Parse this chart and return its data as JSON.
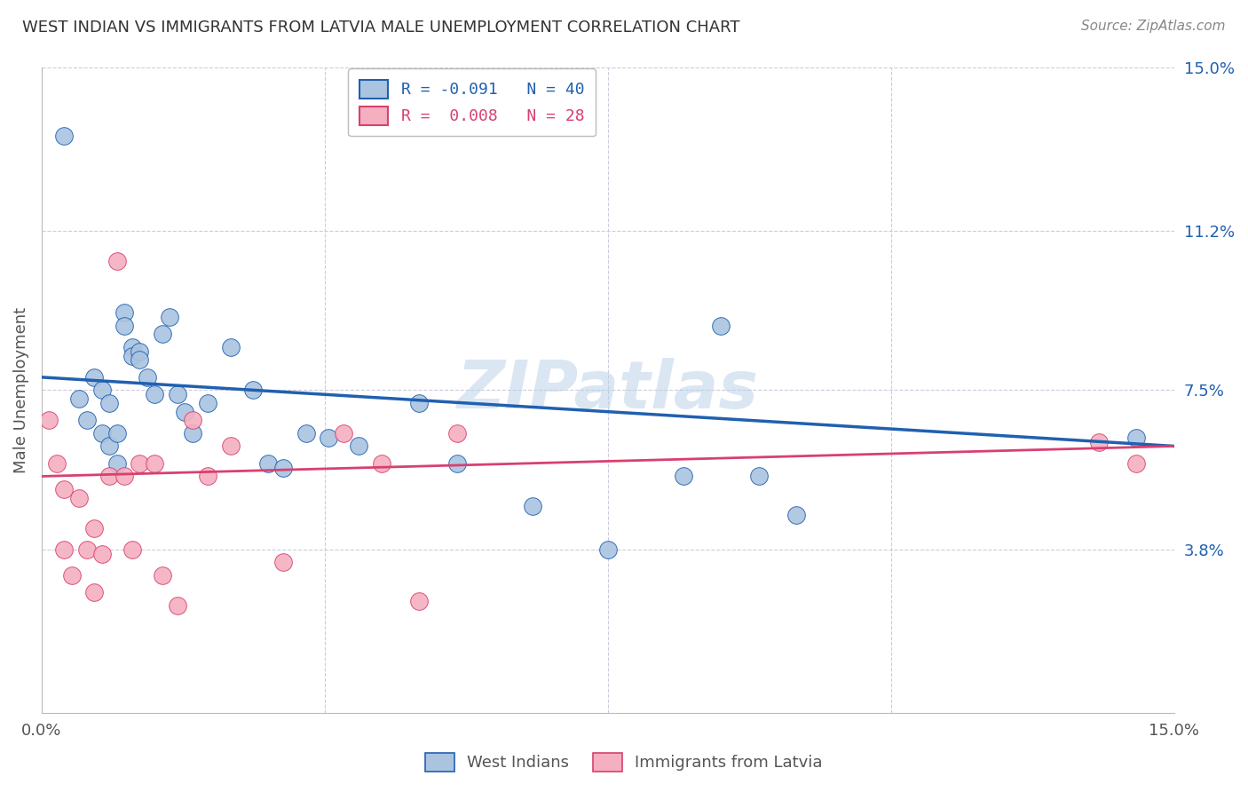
{
  "title": "WEST INDIAN VS IMMIGRANTS FROM LATVIA MALE UNEMPLOYMENT CORRELATION CHART",
  "source": "Source: ZipAtlas.com",
  "ylabel": "Male Unemployment",
  "legend_blue_label": "R = -0.091   N = 40",
  "legend_pink_label": "R =  0.008   N = 28",
  "bottom_legend_blue": "West Indians",
  "bottom_legend_pink": "Immigrants from Latvia",
  "watermark": "ZIPatlas",
  "blue_color": "#aac4e0",
  "blue_line_color": "#2060b0",
  "pink_color": "#f4b0c0",
  "pink_line_color": "#d84070",
  "xlim": [
    0.0,
    0.15
  ],
  "ylim": [
    0.0,
    0.15
  ],
  "yticks_right": [
    0.038,
    0.075,
    0.112,
    0.15
  ],
  "y_tick_labels_right": [
    "3.8%",
    "7.5%",
    "11.2%",
    "15.0%"
  ],
  "blue_x": [
    0.003,
    0.005,
    0.006,
    0.007,
    0.008,
    0.008,
    0.009,
    0.009,
    0.01,
    0.01,
    0.011,
    0.011,
    0.012,
    0.012,
    0.013,
    0.013,
    0.014,
    0.015,
    0.016,
    0.017,
    0.018,
    0.019,
    0.02,
    0.022,
    0.025,
    0.028,
    0.03,
    0.032,
    0.035,
    0.038,
    0.042,
    0.05,
    0.055,
    0.065,
    0.075,
    0.085,
    0.09,
    0.095,
    0.1,
    0.145
  ],
  "blue_y": [
    0.134,
    0.073,
    0.068,
    0.078,
    0.075,
    0.065,
    0.072,
    0.062,
    0.065,
    0.058,
    0.093,
    0.09,
    0.085,
    0.083,
    0.084,
    0.082,
    0.078,
    0.074,
    0.088,
    0.092,
    0.074,
    0.07,
    0.065,
    0.072,
    0.085,
    0.075,
    0.058,
    0.057,
    0.065,
    0.064,
    0.062,
    0.072,
    0.058,
    0.048,
    0.038,
    0.055,
    0.09,
    0.055,
    0.046,
    0.064
  ],
  "pink_x": [
    0.001,
    0.002,
    0.003,
    0.003,
    0.004,
    0.005,
    0.006,
    0.007,
    0.007,
    0.008,
    0.009,
    0.01,
    0.011,
    0.012,
    0.013,
    0.015,
    0.016,
    0.018,
    0.02,
    0.022,
    0.025,
    0.032,
    0.04,
    0.045,
    0.05,
    0.055,
    0.14,
    0.145
  ],
  "pink_y": [
    0.068,
    0.058,
    0.052,
    0.038,
    0.032,
    0.05,
    0.038,
    0.028,
    0.043,
    0.037,
    0.055,
    0.105,
    0.055,
    0.038,
    0.058,
    0.058,
    0.032,
    0.025,
    0.068,
    0.055,
    0.062,
    0.035,
    0.065,
    0.058,
    0.026,
    0.065,
    0.063,
    0.058
  ],
  "blue_line_x": [
    0.0,
    0.15
  ],
  "blue_line_y": [
    0.078,
    0.062
  ],
  "pink_line_x": [
    0.0,
    0.15
  ],
  "pink_line_y": [
    0.055,
    0.062
  ],
  "background_color": "#ffffff",
  "grid_color": "#ccccdd",
  "title_color": "#333333",
  "source_color": "#888888"
}
